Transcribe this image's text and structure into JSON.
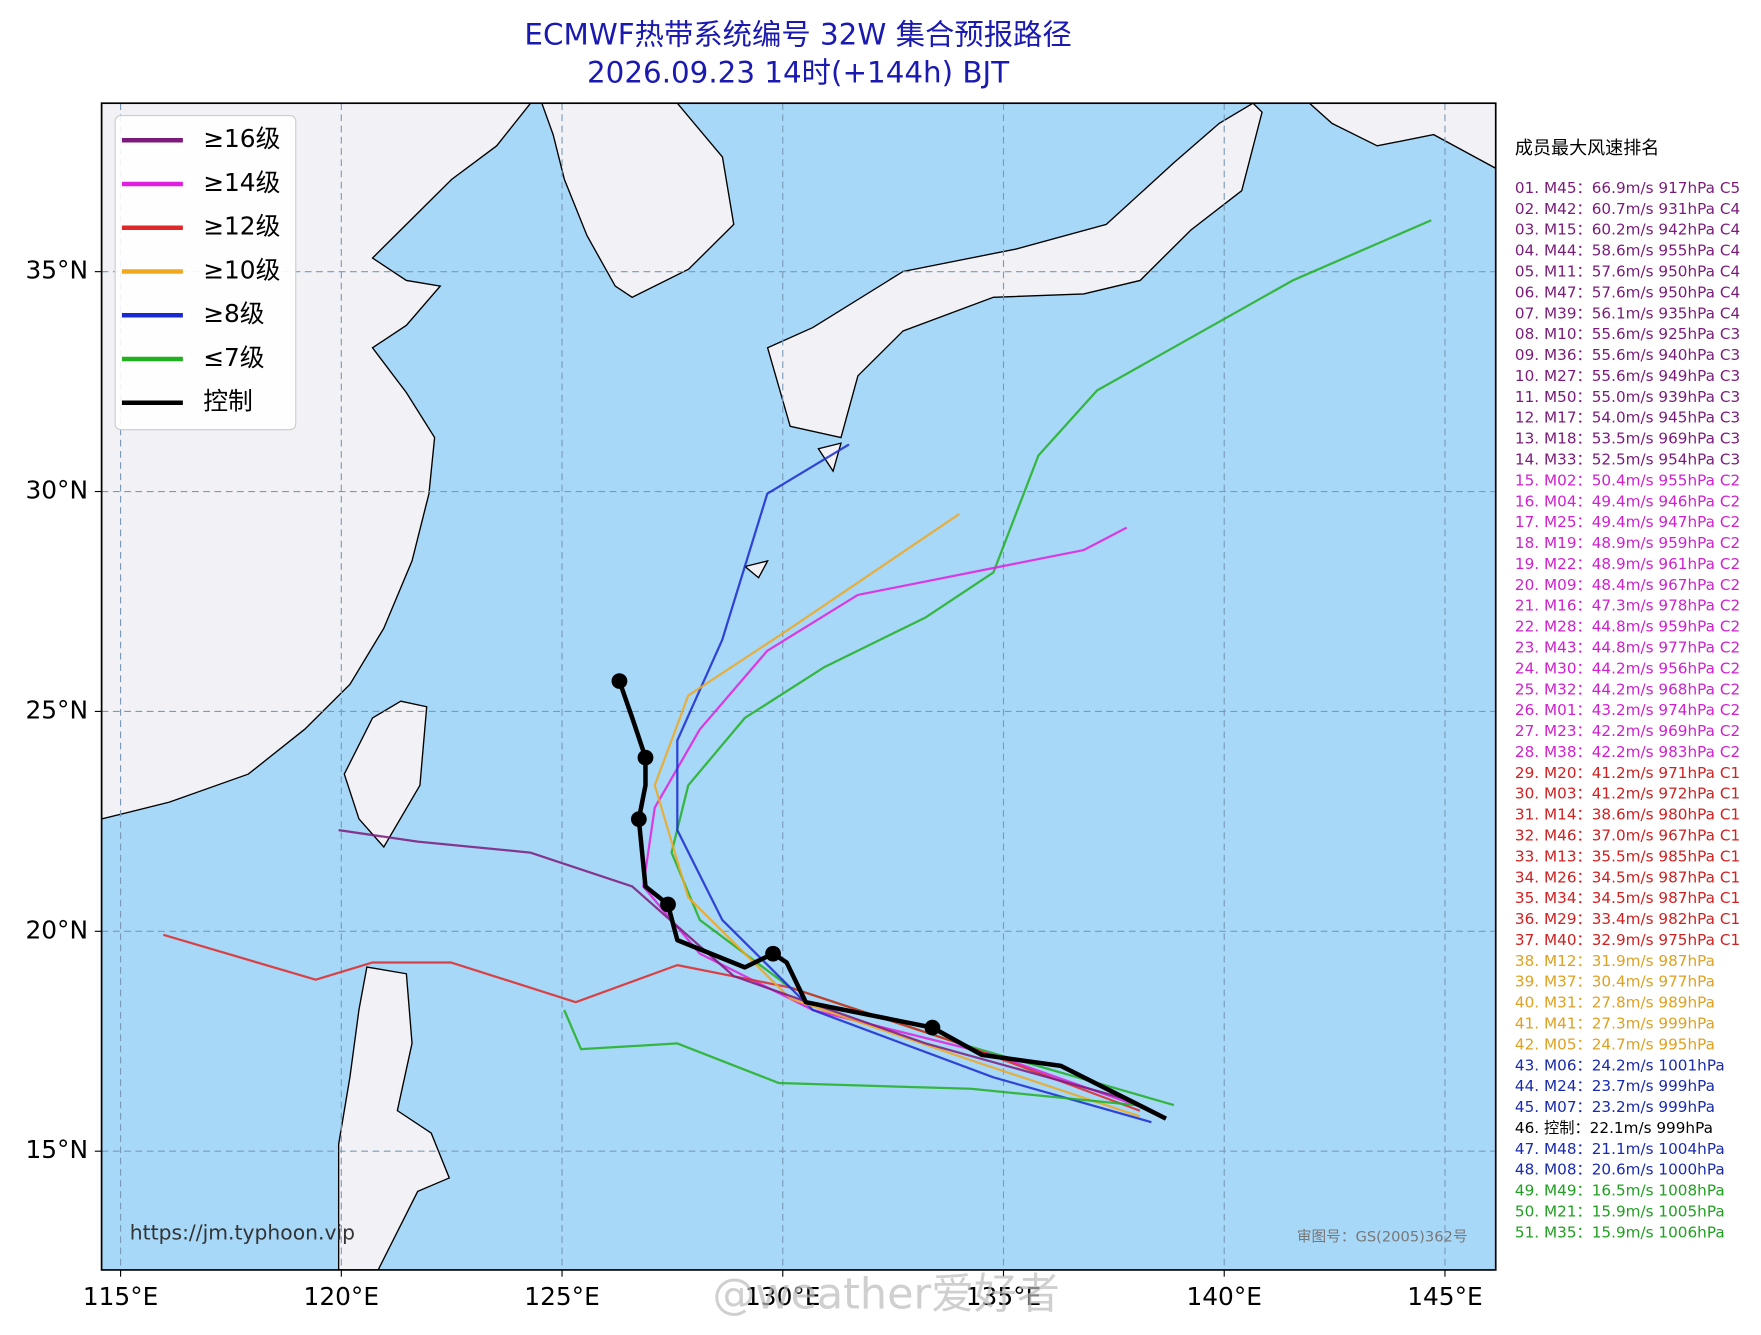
{
  "map": {
    "type": "map",
    "title": "ECMWF热带系统编号 32W 集合预报路径",
    "subtitle": "2026.09.23 14时(+144h) BJT",
    "xlim": [
      114.57,
      146.15
    ],
    "ylim": [
      12.3,
      38.83
    ],
    "xticks": [
      {
        "value": 115,
        "label": "115°E"
      },
      {
        "value": 120,
        "label": "120°E"
      },
      {
        "value": 125,
        "label": "125°E"
      },
      {
        "value": 130,
        "label": "130°E"
      },
      {
        "value": 135,
        "label": "135°E"
      },
      {
        "value": 140,
        "label": "140°E"
      },
      {
        "value": 145,
        "label": "145°E"
      }
    ],
    "yticks": [
      {
        "value": 15,
        "label": "15°N"
      },
      {
        "value": 20,
        "label": "20°N"
      },
      {
        "value": 25,
        "label": "25°N"
      },
      {
        "value": 30,
        "label": "30°N"
      },
      {
        "value": 35,
        "label": "35°N"
      }
    ],
    "grid": true,
    "legend": [
      {
        "name": "≥16级",
        "color": "#7b1a7b"
      },
      {
        "name": "≥14级",
        "color": "#e020e0"
      },
      {
        "name": "≥12级",
        "color": "#e02828"
      },
      {
        "name": "≥10级",
        "color": "#f0a820"
      },
      {
        "name": "≥8级",
        "color": "#1a2ad0"
      },
      {
        "name": "≤7级",
        "color": "#20b020"
      },
      {
        "name": "控制",
        "color": "#000000"
      }
    ],
    "tracks": [
      {
        "color": "#20b020",
        "lon": [
          144.69,
          141.55,
          137.12,
          135.79,
          134.77,
          133.24,
          130.93,
          129.14,
          127.86,
          127.48,
          128.12,
          130.17,
          134.0,
          138.86
        ],
        "lat": [
          36.17,
          34.8,
          32.3,
          30.82,
          28.16,
          27.14,
          26.0,
          24.85,
          23.32,
          21.79,
          20.26,
          18.72,
          17.45,
          16.05
        ]
      },
      {
        "color": "#e020e0",
        "lon": [
          137.79,
          136.82,
          134.26,
          131.7,
          129.65,
          128.12,
          127.1,
          126.84,
          128.12,
          130.68,
          134.77,
          138.35
        ],
        "lat": [
          29.18,
          28.67,
          28.16,
          27.65,
          26.38,
          24.59,
          22.81,
          21.02,
          19.49,
          18.21,
          17.19,
          15.92
        ]
      },
      {
        "color": "#e02828",
        "lon": [
          138.09,
          134.0,
          130.17,
          127.61,
          125.31,
          122.49,
          120.7,
          119.42,
          115.97
        ],
        "lat": [
          15.92,
          17.45,
          18.72,
          19.23,
          18.39,
          19.29,
          19.29,
          18.9,
          19.92
        ]
      },
      {
        "color": "#1a2ad0",
        "lon": [
          138.35,
          134.77,
          130.68,
          128.63,
          127.61,
          127.61,
          128.63,
          129.65,
          131.5
        ],
        "lat": [
          15.66,
          16.68,
          18.21,
          20.26,
          22.3,
          24.34,
          26.63,
          29.95,
          31.07
        ]
      },
      {
        "color": "#f0a820",
        "lon": [
          138.09,
          134.26,
          130.17,
          127.86,
          127.1,
          127.86,
          130.17,
          134.0
        ],
        "lat": [
          15.79,
          17.07,
          18.47,
          20.77,
          23.32,
          25.36,
          26.89,
          29.49
        ]
      },
      {
        "color": "#7b1a7b",
        "lon": [
          137.84,
          133.24,
          128.89,
          126.59,
          124.28,
          121.73,
          119.94
        ],
        "lat": [
          16.17,
          17.45,
          18.98,
          21.02,
          21.79,
          22.04,
          22.3
        ]
      },
      {
        "color": "#20b020",
        "lon": [
          125.05,
          125.43,
          127.61,
          129.91,
          134.26,
          138.09
        ],
        "lat": [
          18.21,
          17.32,
          17.45,
          16.55,
          16.42,
          16.04
        ]
      },
      {
        "color": "#000000",
        "lon": [
          138.68,
          136.3,
          134.51,
          133.39,
          130.52,
          130.09,
          129.78,
          129.14,
          127.61,
          127.4,
          126.89,
          126.74,
          126.89,
          126.89,
          126.59,
          126.3
        ],
        "lat": [
          15.74,
          16.94,
          17.19,
          17.81,
          18.39,
          19.29,
          19.49,
          19.18,
          19.8,
          20.61,
          21.02,
          22.55,
          23.32,
          23.95,
          24.85,
          25.69
        ]
      }
    ],
    "control_positions": {
      "lon": [
        133.39,
        129.78,
        127.4,
        126.74,
        126.89,
        126.3
      ],
      "lat": [
        17.81,
        19.49,
        20.61,
        22.55,
        23.95,
        25.69
      ]
    },
    "ranking": {
      "title": "成员最大风速排名",
      "items": [
        {
          "text": "01. M45：66.9m/s 917hPa C5",
          "color": "#7b1a7b"
        },
        {
          "text": "02. M42：60.7m/s 931hPa C4",
          "color": "#7b1a7b"
        },
        {
          "text": "03. M15：60.2m/s 942hPa C4",
          "color": "#7b1a7b"
        },
        {
          "text": "04. M44：58.6m/s 955hPa C4",
          "color": "#7b1a7b"
        },
        {
          "text": "05. M11：57.6m/s 950hPa C4",
          "color": "#7b1a7b"
        },
        {
          "text": "06. M47：57.6m/s 950hPa C4",
          "color": "#7b1a7b"
        },
        {
          "text": "07. M39：56.1m/s 935hPa C4",
          "color": "#7b1a7b"
        },
        {
          "text": "08. M10：55.6m/s 925hPa C3",
          "color": "#7b1a7b"
        },
        {
          "text": "09. M36：55.6m/s 940hPa C3",
          "color": "#7b1a7b"
        },
        {
          "text": "10. M27：55.6m/s 949hPa C3",
          "color": "#7b1a7b"
        },
        {
          "text": "11. M50：55.0m/s 939hPa C3",
          "color": "#7b1a7b"
        },
        {
          "text": "12. M17：54.0m/s 945hPa C3",
          "color": "#7b1a7b"
        },
        {
          "text": "13. M18：53.5m/s 969hPa C3",
          "color": "#7b1a7b"
        },
        {
          "text": "14. M33：52.5m/s 954hPa C3",
          "color": "#7b1a7b"
        },
        {
          "text": "15. M02：50.4m/s 955hPa C2",
          "color": "#d020d0"
        },
        {
          "text": "16. M04：49.4m/s 946hPa C2",
          "color": "#d020d0"
        },
        {
          "text": "17. M25：49.4m/s 947hPa C2",
          "color": "#d020d0"
        },
        {
          "text": "18. M19：48.9m/s 959hPa C2",
          "color": "#d020d0"
        },
        {
          "text": "19. M22：48.9m/s 961hPa C2",
          "color": "#d020d0"
        },
        {
          "text": "20. M09：48.4m/s 967hPa C2",
          "color": "#d020d0"
        },
        {
          "text": "21. M16：47.3m/s 978hPa C2",
          "color": "#d020d0"
        },
        {
          "text": "22. M28：44.8m/s 959hPa C2",
          "color": "#d020d0"
        },
        {
          "text": "23. M43：44.8m/s 977hPa C2",
          "color": "#d020d0"
        },
        {
          "text": "24. M30：44.2m/s 956hPa C2",
          "color": "#d020d0"
        },
        {
          "text": "25. M32：44.2m/s 968hPa C2",
          "color": "#d020d0"
        },
        {
          "text": "26. M01：43.2m/s 974hPa C2",
          "color": "#d020d0"
        },
        {
          "text": "27. M23：42.2m/s 969hPa C2",
          "color": "#d020d0"
        },
        {
          "text": "28. M38：42.2m/s 983hPa C2",
          "color": "#d020d0"
        },
        {
          "text": "29. M20：41.2m/s 971hPa C1",
          "color": "#d02020"
        },
        {
          "text": "30. M03：41.2m/s 972hPa C1",
          "color": "#d02020"
        },
        {
          "text": "31. M14：38.6m/s 980hPa C1",
          "color": "#d02020"
        },
        {
          "text": "32. M46：37.0m/s 967hPa C1",
          "color": "#d02020"
        },
        {
          "text": "33. M13：35.5m/s 985hPa C1",
          "color": "#d02020"
        },
        {
          "text": "34. M26：34.5m/s 987hPa C1",
          "color": "#d02020"
        },
        {
          "text": "35. M34：34.5m/s 987hPa C1",
          "color": "#d02020"
        },
        {
          "text": "36. M29：33.4m/s 982hPa C1",
          "color": "#d02020"
        },
        {
          "text": "37. M40：32.9m/s 975hPa C1",
          "color": "#d02020"
        },
        {
          "text": "38. M12：31.9m/s 987hPa",
          "color": "#e0a020"
        },
        {
          "text": "39. M37：30.4m/s 977hPa",
          "color": "#e0a020"
        },
        {
          "text": "40. M31：27.8m/s 989hPa",
          "color": "#e0a020"
        },
        {
          "text": "41. M41：27.3m/s 999hPa",
          "color": "#e0a020"
        },
        {
          "text": "42. M05：24.7m/s 995hPa",
          "color": "#e0a020"
        },
        {
          "text": "43. M06：24.2m/s 1001hPa",
          "color": "#1a2ab0"
        },
        {
          "text": "44. M24：23.7m/s 999hPa",
          "color": "#1a2ab0"
        },
        {
          "text": "45. M07：23.2m/s 999hPa",
          "color": "#1a2ab0"
        },
        {
          "text": "46. 控制：22.1m/s 999hPa",
          "color": "#000000"
        },
        {
          "text": "47. M48：21.1m/s 1004hPa",
          "color": "#1a2ab0"
        },
        {
          "text": "48. M08：20.6m/s 1000hPa",
          "color": "#1a2ab0"
        },
        {
          "text": "49. M49：16.5m/s 1008hPa",
          "color": "#20a020"
        },
        {
          "text": "50. M21：15.9m/s 1005hPa",
          "color": "#20a020"
        },
        {
          "text": "51. M35：15.9m/s 1006hPa",
          "color": "#20a020"
        }
      ]
    },
    "source_url": "https://jm.typhoon.vip",
    "map_approval": "审图号：GS(2005)362号",
    "watermark": "@weather爱好者"
  }
}
